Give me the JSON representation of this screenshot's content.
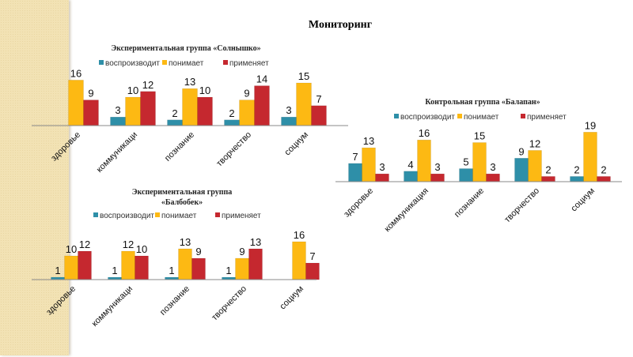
{
  "page": {
    "title": "Мониторинг"
  },
  "colors": {
    "воспроизводит": "#2e8fa8",
    "понимает": "#fdb913",
    "применяет": "#c5282f",
    "strip": "#f2e2b4"
  },
  "chart_data": [
    {
      "id": "solnyshko",
      "type": "bar",
      "title_lines": [
        "Экспериментальная группа «Солнышко»"
      ],
      "legend": [
        "воспроизводит",
        "понимает",
        "применяет"
      ],
      "legend_position": "top",
      "categories": [
        "здоровье",
        "коммуникаци",
        "познание",
        "творчество",
        "социум"
      ],
      "series": [
        {
          "name": "воспроизводит",
          "values": [
            0,
            3,
            2,
            2,
            3
          ]
        },
        {
          "name": "понимает",
          "values": [
            16,
            10,
            13,
            9,
            15
          ]
        },
        {
          "name": "применяет",
          "values": [
            9,
            12,
            10,
            14,
            7
          ]
        }
      ],
      "ylim": [
        0,
        16
      ],
      "grid": false,
      "xlabel": "",
      "ylabel": ""
    },
    {
      "id": "balabek",
      "type": "bar",
      "title_lines": [
        "Экспериментальная группа",
        "«Балбобек»"
      ],
      "legend": [
        "воспроизводит",
        "понимает",
        "применяет"
      ],
      "legend_position": "top",
      "categories": [
        "здоровье",
        "коммуникаци",
        "познание",
        "творчество",
        "социум"
      ],
      "series": [
        {
          "name": "воспроизводит",
          "values": [
            1,
            1,
            1,
            1,
            0
          ]
        },
        {
          "name": "понимает",
          "values": [
            10,
            12,
            13,
            9,
            16
          ]
        },
        {
          "name": "применяет",
          "values": [
            12,
            10,
            9,
            13,
            7
          ]
        }
      ],
      "ylim": [
        0,
        16
      ],
      "grid": false,
      "xlabel": "",
      "ylabel": ""
    },
    {
      "id": "balapan",
      "type": "bar",
      "title_lines": [
        "Контрольная группа «Балапан»"
      ],
      "legend": [
        "воспроизводит",
        "понимает",
        "применяет"
      ],
      "legend_position": "top",
      "categories": [
        "здоровье",
        "коммуникация",
        "познание",
        "творчество",
        "социум"
      ],
      "series": [
        {
          "name": "воспроизводит",
          "values": [
            7,
            4,
            5,
            9,
            2
          ]
        },
        {
          "name": "понимает",
          "values": [
            13,
            16,
            15,
            12,
            19
          ]
        },
        {
          "name": "применяет",
          "values": [
            3,
            3,
            3,
            2,
            2
          ]
        }
      ],
      "ylim": [
        0,
        19
      ],
      "grid": false,
      "xlabel": "",
      "ylabel": ""
    }
  ]
}
